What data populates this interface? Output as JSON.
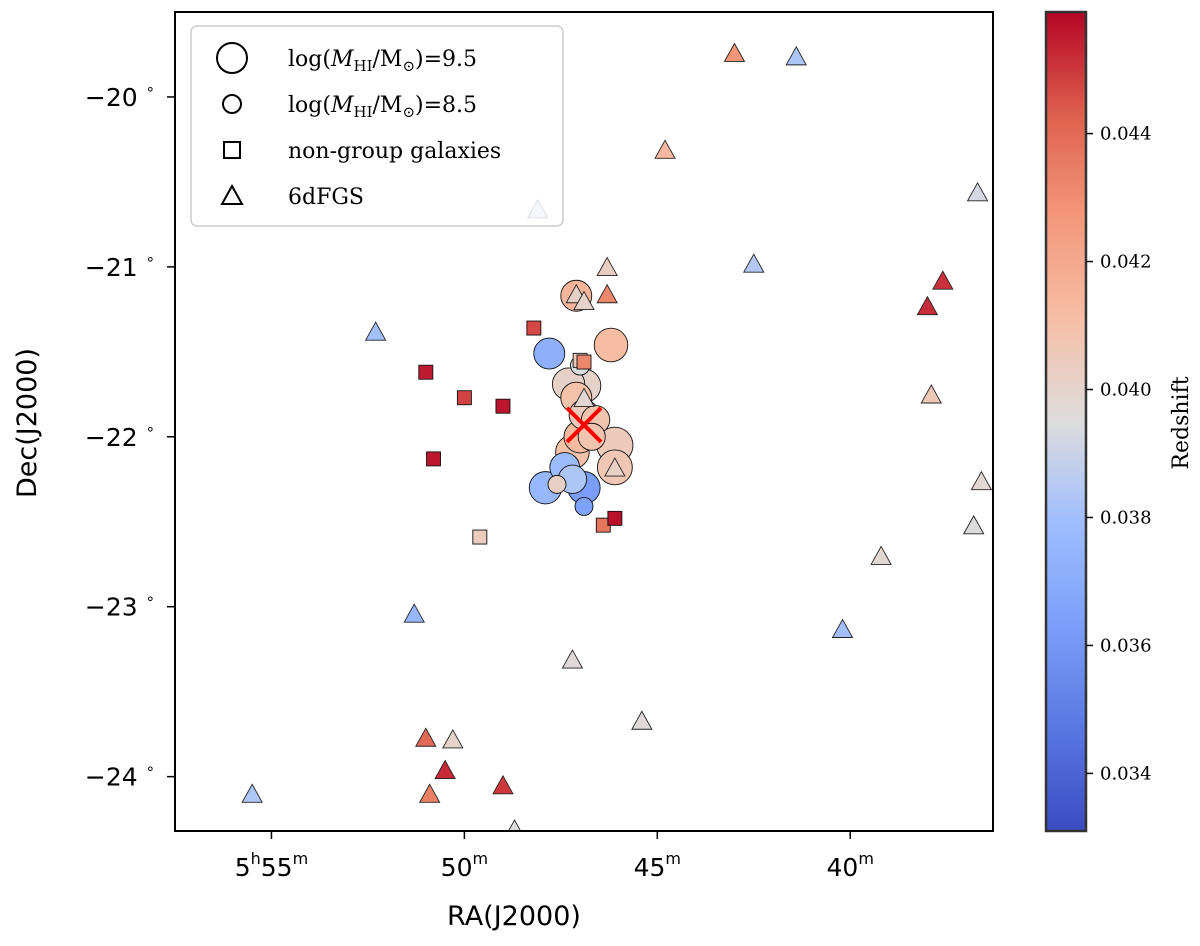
{
  "chart_data": {
    "type": "scatter",
    "xlabel": "RA(J2000)",
    "ylabel": "Dec(J2000)",
    "x_ticks": [
      {
        "value": 55,
        "major": "5",
        "h": "h",
        "minor": "55",
        "m": "m"
      },
      {
        "value": 50,
        "major": "50",
        "h": "",
        "minor": "",
        "m": "m"
      },
      {
        "value": 45,
        "major": "45",
        "h": "",
        "minor": "",
        "m": "m"
      },
      {
        "value": 40,
        "major": "40",
        "h": "",
        "minor": "",
        "m": "m"
      }
    ],
    "y_ticks": [
      {
        "value": -20,
        "label": "−20",
        "deg": "∘"
      },
      {
        "value": -21,
        "label": "−21",
        "deg": "∘"
      },
      {
        "value": -22,
        "label": "−22",
        "deg": "∘"
      },
      {
        "value": -23,
        "label": "−23",
        "deg": "∘"
      },
      {
        "value": -24,
        "label": "−24",
        "deg": "∘"
      }
    ],
    "xlim": [
      57.5,
      36.3
    ],
    "ylim": [
      -24.32,
      -19.5
    ],
    "colorbar": {
      "label": "Redshift",
      "range": [
        0.0331,
        0.0459
      ],
      "ticks": [
        "0.034",
        "0.036",
        "0.038",
        "0.040",
        "0.042",
        "0.044"
      ],
      "tick_values": [
        0.034,
        0.036,
        0.038,
        0.04,
        0.042,
        0.044
      ],
      "colormap": "coolwarm"
    },
    "legend": {
      "placement": "top-left",
      "entries": [
        {
          "marker": "circle-large",
          "text": "log(M_HI/M_⊙)=9.5"
        },
        {
          "marker": "circle-small",
          "text": "log(M_HI/M_⊙)=8.5"
        },
        {
          "marker": "square",
          "text": "non-group galaxies"
        },
        {
          "marker": "triangle",
          "text": "6dFGS"
        }
      ]
    },
    "group_center": {
      "ra": 46.9,
      "dec": -21.93,
      "marker": "x",
      "color": "#ff0000"
    },
    "series": [
      {
        "name": "group galaxies (HI)",
        "marker": "circle",
        "points": [
          {
            "ra": 47.1,
            "dec": -21.17,
            "z": 0.0415,
            "logM": 9.5
          },
          {
            "ra": 46.2,
            "dec": -21.46,
            "z": 0.0412,
            "logM": 9.7
          },
          {
            "ra": 47.8,
            "dec": -21.51,
            "z": 0.0371,
            "logM": 9.5
          },
          {
            "ra": 47.0,
            "dec": -21.58,
            "z": 0.0395,
            "logM": 8.6
          },
          {
            "ra": 47.3,
            "dec": -21.69,
            "z": 0.0401,
            "logM": 9.6
          },
          {
            "ra": 46.9,
            "dec": -21.7,
            "z": 0.04,
            "logM": 9.7
          },
          {
            "ra": 47.1,
            "dec": -21.77,
            "z": 0.041,
            "logM": 9.5
          },
          {
            "ra": 46.9,
            "dec": -21.87,
            "z": 0.0405,
            "logM": 9.4
          },
          {
            "ra": 46.6,
            "dec": -21.9,
            "z": 0.0408,
            "logM": 9.3
          },
          {
            "ra": 46.7,
            "dec": -22.0,
            "z": 0.0408,
            "logM": 9.2
          },
          {
            "ra": 47.0,
            "dec": -22.0,
            "z": 0.0413,
            "logM": 9.6
          },
          {
            "ra": 46.1,
            "dec": -22.05,
            "z": 0.0405,
            "logM": 9.9
          },
          {
            "ra": 47.2,
            "dec": -22.09,
            "z": 0.041,
            "logM": 9.7
          },
          {
            "ra": 46.1,
            "dec": -22.18,
            "z": 0.0407,
            "logM": 9.8
          },
          {
            "ra": 47.4,
            "dec": -22.18,
            "z": 0.0378,
            "logM": 9.4
          },
          {
            "ra": 47.2,
            "dec": -22.25,
            "z": 0.0383,
            "logM": 9.3
          },
          {
            "ra": 47.6,
            "dec": -22.28,
            "z": 0.0402,
            "logM": 8.5
          },
          {
            "ra": 47.9,
            "dec": -22.3,
            "z": 0.0376,
            "logM": 9.6
          },
          {
            "ra": 46.9,
            "dec": -22.3,
            "z": 0.0362,
            "logM": 9.6
          },
          {
            "ra": 46.9,
            "dec": -22.41,
            "z": 0.0365,
            "logM": 8.5
          }
        ]
      },
      {
        "name": "non-group galaxies",
        "marker": "square",
        "points": [
          {
            "ra": 48.2,
            "dec": -21.36,
            "z": 0.0447
          },
          {
            "ra": 47.0,
            "dec": -21.55,
            "z": 0.0405
          },
          {
            "ra": 46.9,
            "dec": -21.56,
            "z": 0.0432
          },
          {
            "ra": 51.0,
            "dec": -21.62,
            "z": 0.0455
          },
          {
            "ra": 50.0,
            "dec": -21.77,
            "z": 0.0448
          },
          {
            "ra": 49.0,
            "dec": -21.82,
            "z": 0.0456
          },
          {
            "ra": 50.8,
            "dec": -22.13,
            "z": 0.0456
          },
          {
            "ra": 46.4,
            "dec": -22.52,
            "z": 0.0437
          },
          {
            "ra": 46.1,
            "dec": -22.48,
            "z": 0.0457
          },
          {
            "ra": 49.6,
            "dec": -22.59,
            "z": 0.0404
          }
        ]
      },
      {
        "name": "6dFGS",
        "marker": "triangle",
        "points": [
          {
            "ra": 43.0,
            "dec": -19.75,
            "z": 0.0428
          },
          {
            "ra": 41.4,
            "dec": -19.77,
            "z": 0.0383
          },
          {
            "ra": 44.8,
            "dec": -20.32,
            "z": 0.0414
          },
          {
            "ra": 36.7,
            "dec": -20.57,
            "z": 0.0393
          },
          {
            "ra": 48.1,
            "dec": -20.67,
            "z": 0.0385
          },
          {
            "ra": 42.5,
            "dec": -20.99,
            "z": 0.0384
          },
          {
            "ra": 46.3,
            "dec": -21.01,
            "z": 0.0403
          },
          {
            "ra": 37.6,
            "dec": -21.09,
            "z": 0.0451
          },
          {
            "ra": 46.3,
            "dec": -21.17,
            "z": 0.0432
          },
          {
            "ra": 47.1,
            "dec": -21.17,
            "z": 0.0401
          },
          {
            "ra": 46.9,
            "dec": -21.21,
            "z": 0.04
          },
          {
            "ra": 38.0,
            "dec": -21.24,
            "z": 0.0452
          },
          {
            "ra": 52.3,
            "dec": -21.39,
            "z": 0.038
          },
          {
            "ra": 46.9,
            "dec": -21.78,
            "z": 0.0398
          },
          {
            "ra": 37.9,
            "dec": -21.76,
            "z": 0.0406
          },
          {
            "ra": 46.1,
            "dec": -22.19,
            "z": 0.0402
          },
          {
            "ra": 36.6,
            "dec": -22.27,
            "z": 0.0398
          },
          {
            "ra": 36.8,
            "dec": -22.53,
            "z": 0.0395
          },
          {
            "ra": 39.2,
            "dec": -22.71,
            "z": 0.0398
          },
          {
            "ra": 51.3,
            "dec": -23.05,
            "z": 0.0376
          },
          {
            "ra": 40.2,
            "dec": -23.14,
            "z": 0.038
          },
          {
            "ra": 47.2,
            "dec": -23.32,
            "z": 0.0396
          },
          {
            "ra": 45.4,
            "dec": -23.68,
            "z": 0.0396
          },
          {
            "ra": 51.0,
            "dec": -23.78,
            "z": 0.044
          },
          {
            "ra": 50.3,
            "dec": -23.79,
            "z": 0.04
          },
          {
            "ra": 50.5,
            "dec": -23.97,
            "z": 0.0452
          },
          {
            "ra": 49.0,
            "dec": -24.06,
            "z": 0.045
          },
          {
            "ra": 50.9,
            "dec": -24.11,
            "z": 0.0434
          },
          {
            "ra": 55.5,
            "dec": -24.11,
            "z": 0.0383
          },
          {
            "ra": 48.7,
            "dec": -24.32,
            "z": 0.0395
          }
        ]
      }
    ]
  }
}
